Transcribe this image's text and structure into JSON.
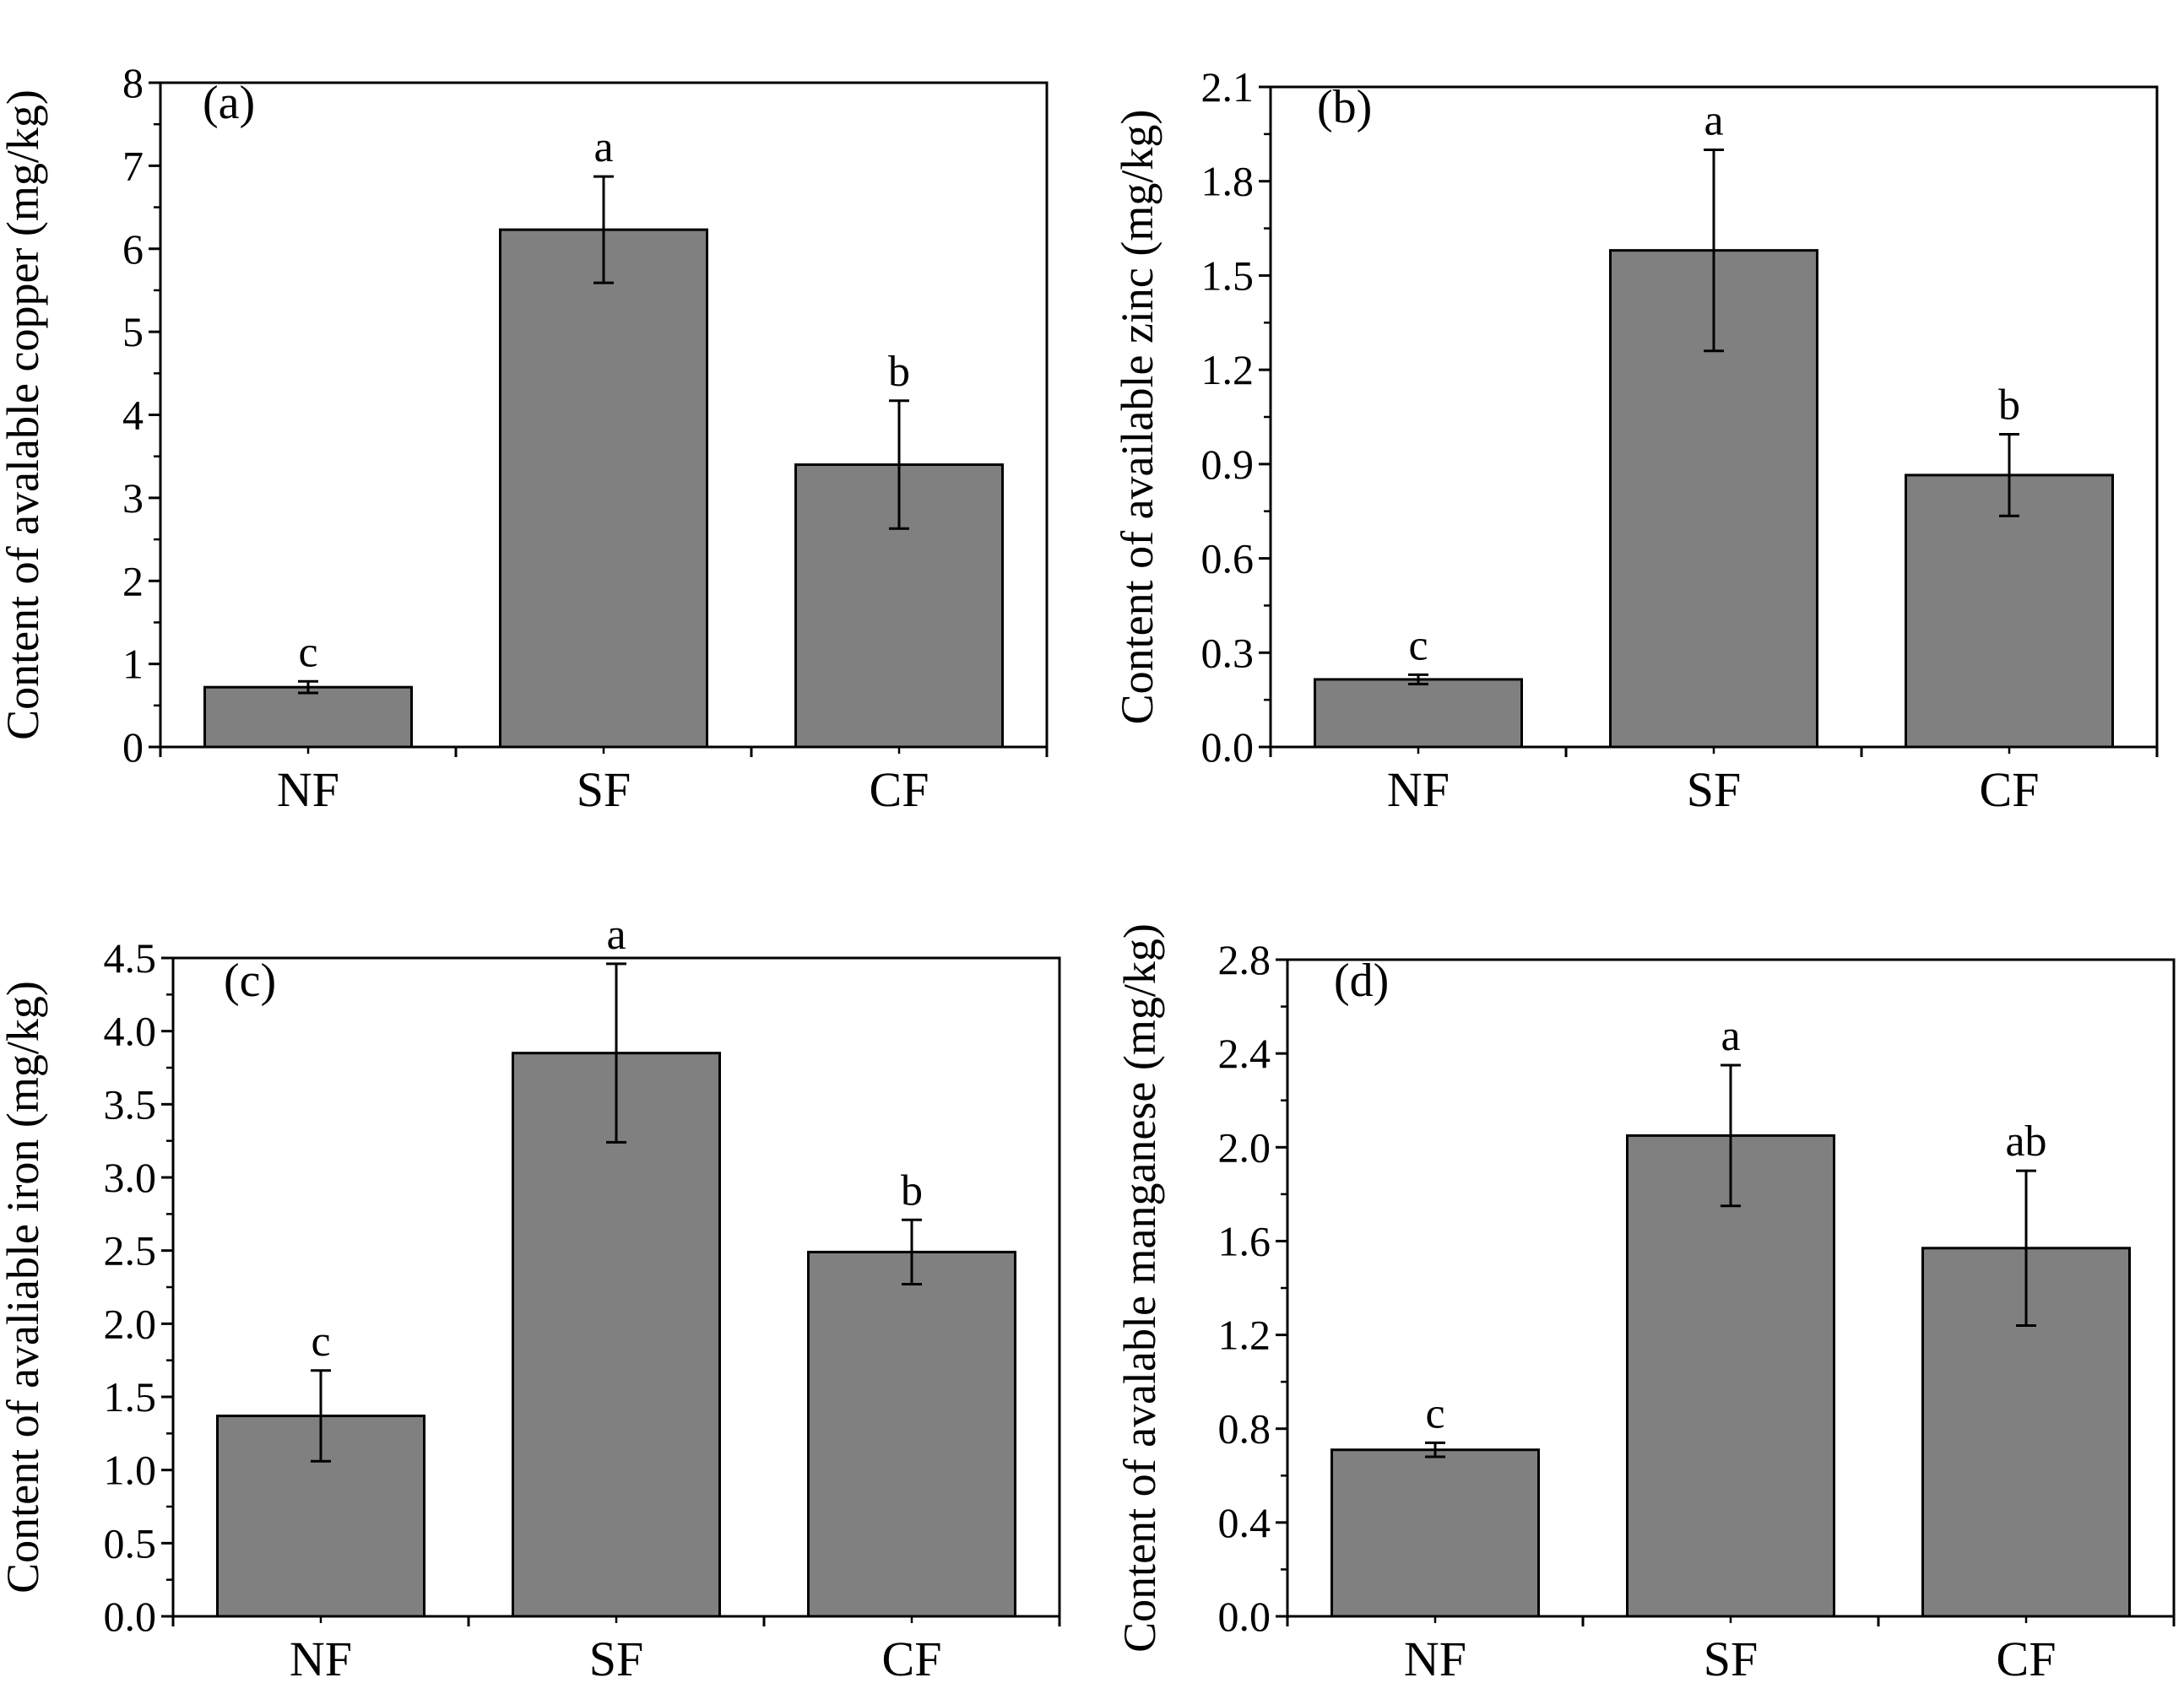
{
  "chart_data": [
    {
      "id": "a",
      "type": "bar",
      "panel_label": "(a)",
      "categories": [
        "NF",
        "SF",
        "CF"
      ],
      "values": [
        0.72,
        6.23,
        3.4
      ],
      "errors": [
        0.07,
        0.64,
        0.77
      ],
      "significance": [
        "c",
        "a",
        "b"
      ],
      "ylabel": "Content of avalable copper (mg/kg)",
      "ylim": [
        0,
        8
      ],
      "yticks": [
        "0",
        "1",
        "2",
        "3",
        "4",
        "5",
        "6",
        "7",
        "8"
      ],
      "bar_color": "#808080"
    },
    {
      "id": "b",
      "type": "bar",
      "panel_label": "(b)",
      "categories": [
        "NF",
        "SF",
        "CF"
      ],
      "values": [
        0.215,
        1.58,
        0.865
      ],
      "errors": [
        0.015,
        0.32,
        0.13
      ],
      "significance": [
        "c",
        "a",
        "b"
      ],
      "ylabel": "Content of available zinc (mg/kg)",
      "ylim": [
        0,
        2.1
      ],
      "yticks": [
        "0.0",
        "0.3",
        "0.6",
        "0.9",
        "1.2",
        "1.5",
        "1.8",
        "2.1"
      ],
      "bar_color": "#808080"
    },
    {
      "id": "c",
      "type": "bar",
      "panel_label": "(c)",
      "categories": [
        "NF",
        "SF",
        "CF"
      ],
      "values": [
        1.37,
        3.85,
        2.49
      ],
      "errors": [
        0.31,
        0.61,
        0.22
      ],
      "significance": [
        "c",
        "a",
        "b"
      ],
      "ylabel": "Content of avaliable iron (mg/kg)",
      "ylim": [
        0,
        4.5
      ],
      "yticks": [
        "0.0",
        "0.5",
        "1.0",
        "1.5",
        "2.0",
        "2.5",
        "3.0",
        "3.5",
        "4.0",
        "4.5"
      ],
      "bar_color": "#808080"
    },
    {
      "id": "d",
      "type": "bar",
      "panel_label": "(d)",
      "categories": [
        "NF",
        "SF",
        "CF"
      ],
      "values": [
        0.71,
        2.05,
        1.57
      ],
      "errors": [
        0.03,
        0.3,
        0.33
      ],
      "significance": [
        "c",
        "a",
        "ab"
      ],
      "ylabel": "Content of avalable manganese (mg/kg)",
      "ylim": [
        0,
        2.8
      ],
      "yticks": [
        "0.0",
        "0.4",
        "0.8",
        "1.2",
        "1.6",
        "2.0",
        "2.4",
        "2.8"
      ],
      "bar_color": "#808080"
    }
  ]
}
